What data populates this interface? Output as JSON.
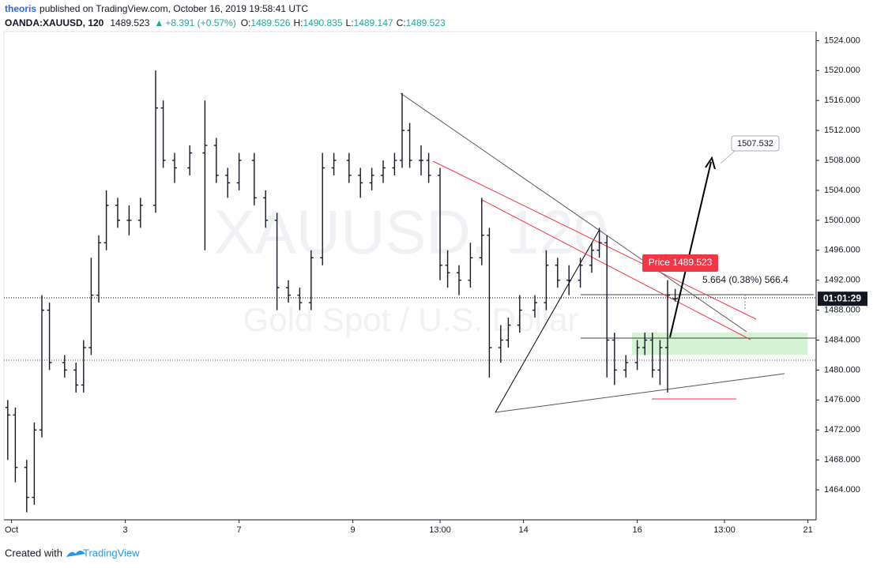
{
  "header": {
    "author": "theoris",
    "published": "published on TradingView.com, October 16, 2019 19:58:41 UTC"
  },
  "chart_data": {
    "type": "ohlc",
    "symbol": "OANDA:XAUUSD, 120",
    "last": 1489.523,
    "change": "+8.391 (+0.57%)",
    "legend": [
      {
        "label": "O:",
        "value": 1489.526
      },
      {
        "label": "H:",
        "value": 1490.835
      },
      {
        "label": "L:",
        "value": 1489.147
      },
      {
        "label": "C:",
        "value": 1489.523
      }
    ],
    "watermark": "XAUUSD, 120",
    "watermark_subtitle": "Gold Spot / U.S. Dollar",
    "color": "#131722",
    "x": [
      1,
      3,
      6,
      8,
      10,
      12,
      16,
      19,
      21,
      23,
      25,
      27,
      30,
      33,
      36,
      40,
      42,
      45,
      49,
      53,
      56,
      59,
      62,
      66,
      69,
      72,
      75,
      78,
      81,
      84,
      87,
      91,
      94,
      97,
      100,
      103,
      105,
      107,
      110,
      112,
      115,
      117,
      120,
      123,
      126,
      128,
      131,
      133,
      136,
      140,
      143,
      146,
      149,
      152,
      155,
      157,
      159,
      161,
      164,
      167,
      169,
      171,
      173,
      175,
      177
    ],
    "open": [
      1475,
      1474,
      1467,
      1463,
      1472,
      1488,
      1481,
      1480,
      1478,
      1483,
      1490,
      1497,
      1502,
      1500,
      1500,
      1502,
      1515,
      1508,
      1507,
      1509,
      1510,
      1506,
      1505,
      1508,
      1503,
      1500,
      1491,
      1490,
      1489,
      1495,
      1507,
      1508,
      1506,
      1505,
      1506,
      1507,
      1508,
      1512,
      1508,
      1508,
      1506,
      1494,
      1493,
      1492,
      1495,
      1498,
      1483,
      1484,
      1486,
      1488,
      1489,
      1494,
      1492,
      1492,
      1494,
      1496,
      1497,
      1484,
      1480,
      1481,
      1483,
      1484,
      1480,
      1483,
      1489.526
    ],
    "high": [
      1476,
      1475,
      1468,
      1473,
      1490,
      1489,
      1482,
      1481,
      1484,
      1495,
      1498,
      1504,
      1503,
      1502,
      1503,
      1520,
      1516,
      1509,
      1510,
      1516,
      1511,
      1507,
      1509,
      1509,
      1504,
      1501,
      1492,
      1491,
      1496,
      1509,
      1509,
      1509,
      1507,
      1507,
      1508,
      1509,
      1517,
      1513,
      1510,
      1509,
      1507,
      1496,
      1494,
      1497,
      1503,
      1499,
      1486,
      1487,
      1490,
      1490,
      1496,
      1495,
      1494,
      1495,
      1497,
      1499,
      1498,
      1485,
      1482,
      1484,
      1485,
      1485,
      1484,
      1492,
      1490.835
    ],
    "low": [
      1468,
      1465,
      1461,
      1462,
      1471,
      1480,
      1479,
      1477,
      1477,
      1482,
      1489,
      1496,
      1499,
      1498,
      1499,
      1501,
      1507,
      1505,
      1506,
      1496,
      1505,
      1503,
      1504,
      1502,
      1499,
      1488,
      1489,
      1488,
      1488,
      1494,
      1506,
      1505,
      1503,
      1504,
      1505,
      1506,
      1507,
      1507,
      1506,
      1505,
      1492,
      1491,
      1490,
      1491,
      1494,
      1479,
      1481,
      1483,
      1485,
      1487,
      1488,
      1491,
      1490,
      1491,
      1493,
      1495,
      1479,
      1478,
      1479,
      1480,
      1482,
      1479,
      1478,
      1477,
      1489.147
    ],
    "close": [
      1474,
      1467,
      1463,
      1472,
      1488,
      1481,
      1480,
      1478,
      1483,
      1490,
      1497,
      1502,
      1500,
      1500,
      1502,
      1515,
      1508,
      1507,
      1509,
      1510,
      1506,
      1505,
      1508,
      1503,
      1500,
      1491,
      1490,
      1489,
      1495,
      1507,
      1508,
      1506,
      1505,
      1506,
      1507,
      1508,
      1512,
      1508,
      1508,
      1506,
      1494,
      1493,
      1492,
      1495,
      1498,
      1483,
      1484,
      1486,
      1488,
      1489,
      1494,
      1492,
      1492,
      1494,
      1496,
      1497,
      1484,
      1480,
      1481,
      1483,
      1484,
      1480,
      1483,
      1490,
      1489.523
    ],
    "xlim": [
      0,
      214
    ],
    "ylim": [
      1460,
      1525.2
    ],
    "xticks": [
      {
        "value": 2,
        "label": "Oct"
      },
      {
        "value": 32,
        "label": "3"
      },
      {
        "value": 62,
        "label": "7"
      },
      {
        "value": 92,
        "label": "9"
      },
      {
        "value": 115,
        "label": "13:00"
      },
      {
        "value": 137,
        "label": "14"
      },
      {
        "value": 167,
        "label": "16"
      },
      {
        "value": 190,
        "label": "13:00"
      },
      {
        "value": 212,
        "label": "21"
      }
    ],
    "yticks": [
      {
        "value": 1464,
        "label": "1464.000"
      },
      {
        "value": 1468,
        "label": "1468.000"
      },
      {
        "value": 1472,
        "label": "1472.000"
      },
      {
        "value": 1476,
        "label": "1476.000"
      },
      {
        "value": 1480,
        "label": "1480.000"
      },
      {
        "value": 1484,
        "label": "1484.000"
      },
      {
        "value": 1488,
        "label": "1488.000"
      },
      {
        "value": 1492,
        "label": "1492.000"
      },
      {
        "value": 1496,
        "label": "1496.000"
      },
      {
        "value": 1500,
        "label": "1500.000"
      },
      {
        "value": 1504,
        "label": "1504.000"
      },
      {
        "value": 1508,
        "label": "1508.000"
      },
      {
        "value": 1512,
        "label": "1512.000"
      },
      {
        "value": 1516,
        "label": "1516.000"
      },
      {
        "value": 1520,
        "label": "1520.000"
      },
      {
        "value": 1524,
        "label": "1524.000"
      }
    ],
    "annotations": {
      "price_label": "Price 1489.523",
      "measure": "5.664 (0.38%) 566.4",
      "target": "1507.532",
      "countdown": "01:01:29"
    }
  },
  "footer": {
    "text": "Created with",
    "brand": "TradingView"
  }
}
